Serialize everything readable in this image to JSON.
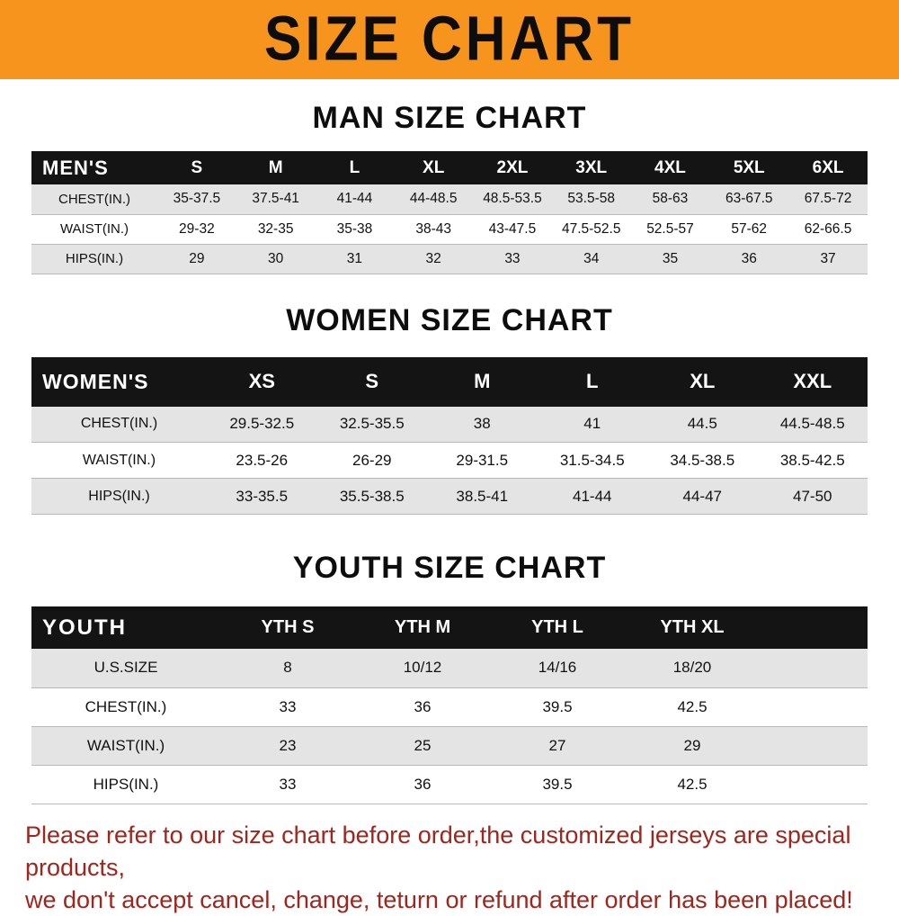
{
  "banner": {
    "title": "SIZE CHART"
  },
  "sections": {
    "man": {
      "heading": "MAN SIZE CHART"
    },
    "women": {
      "heading": "WOMEN SIZE CHART"
    },
    "youth": {
      "heading": "YOUTH SIZE CHART"
    }
  },
  "tables": [
    {
      "name": "mens",
      "label": "MEN'S",
      "columns": [
        "S",
        "M",
        "L",
        "XL",
        "2XL",
        "3XL",
        "4XL",
        "5XL",
        "6XL"
      ],
      "rows": [
        {
          "label": "CHEST(IN.)",
          "values": [
            "35-37.5",
            "37.5-41",
            "41-44",
            "44-48.5",
            "48.5-53.5",
            "53.5-58",
            "58-63",
            "63-67.5",
            "67.5-72"
          ]
        },
        {
          "label": "WAIST(IN.)",
          "values": [
            "29-32",
            "32-35",
            "35-38",
            "38-43",
            "43-47.5",
            "47.5-52.5",
            "52.5-57",
            "57-62",
            "62-66.5"
          ]
        },
        {
          "label": "HIPS(IN.)",
          "values": [
            "29",
            "30",
            "31",
            "32",
            "33",
            "34",
            "35",
            "36",
            "37"
          ]
        }
      ]
    },
    {
      "name": "womens",
      "label": "WOMEN'S",
      "columns": [
        "XS",
        "S",
        "M",
        "L",
        "XL",
        "XXL"
      ],
      "rows": [
        {
          "label": "CHEST(IN.)",
          "values": [
            "29.5-32.5",
            "32.5-35.5",
            "38",
            "41",
            "44.5",
            "44.5-48.5"
          ]
        },
        {
          "label": "WAIST(IN.)",
          "values": [
            "23.5-26",
            "26-29",
            "29-31.5",
            "31.5-34.5",
            "34.5-38.5",
            "38.5-42.5"
          ]
        },
        {
          "label": "HIPS(IN.)",
          "values": [
            "33-35.5",
            "35.5-38.5",
            "38.5-41",
            "41-44",
            "44-47",
            "47-50"
          ]
        }
      ]
    },
    {
      "name": "youth",
      "label": "YOUTH",
      "columns": [
        "YTH S",
        "YTH M",
        "YTH L",
        "YTH XL"
      ],
      "rows": [
        {
          "label": "U.S.SIZE",
          "values": [
            "8",
            "10/12",
            "14/16",
            "18/20"
          ]
        },
        {
          "label": "CHEST(IN.)",
          "values": [
            "33",
            "36",
            "39.5",
            "42.5"
          ]
        },
        {
          "label": "WAIST(IN.)",
          "values": [
            "23",
            "25",
            "27",
            "29"
          ]
        },
        {
          "label": "HIPS(IN.)",
          "values": [
            "33",
            "36",
            "39.5",
            "42.5"
          ]
        }
      ]
    }
  ],
  "disclaimer": {
    "line1": "Please refer to our size chart before order,the customized jerseys are special products,",
    "line2": "we don't accept cancel, change, teturn or refund after order has been placed!"
  },
  "colors": {
    "banner_orange": "#f7941d",
    "header_black": "#141414",
    "row_gray": "#e4e4e4",
    "disclaimer_red": "#a0251d"
  }
}
